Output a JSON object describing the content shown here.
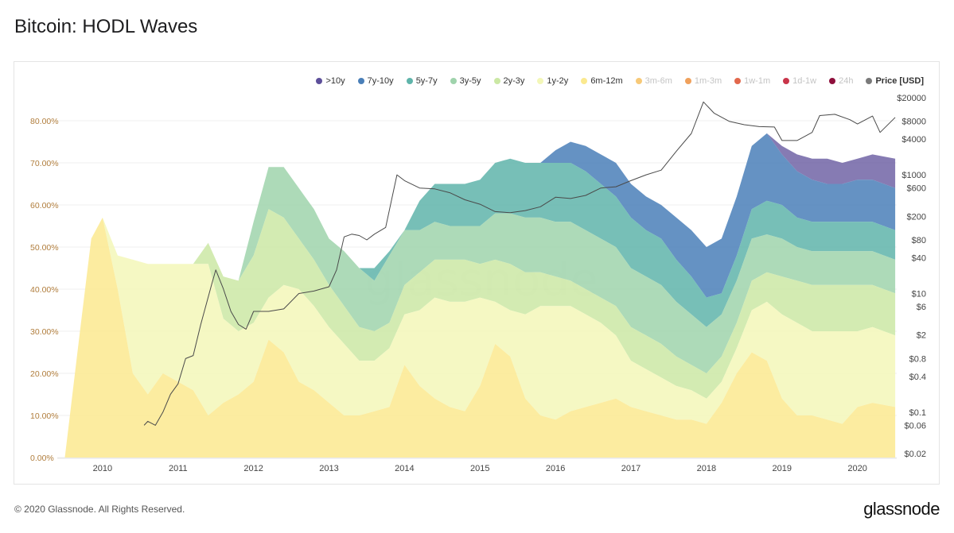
{
  "header": {
    "title": "Bitcoin: HODL Waves"
  },
  "footer": {
    "copyright": "© 2020 Glassnode. All Rights Reserved.",
    "brand": "glassnode"
  },
  "watermark": "glassnode",
  "legend": [
    {
      "label": ">10y",
      "color": "#5d4f9a",
      "active": true
    },
    {
      "label": "7y-10y",
      "color": "#4a7fb8",
      "active": true
    },
    {
      "label": "5y-7y",
      "color": "#5fb4aa",
      "active": true
    },
    {
      "label": "3y-5y",
      "color": "#9fd3ac",
      "active": true
    },
    {
      "label": "2y-3y",
      "color": "#cbe8a4",
      "active": true
    },
    {
      "label": "1y-2y",
      "color": "#f3f7b8",
      "active": true
    },
    {
      "label": "6m-12m",
      "color": "#fbe98f",
      "active": true
    },
    {
      "label": "3m-6m",
      "color": "#f7c978",
      "active": false
    },
    {
      "label": "1m-3m",
      "color": "#f0a15c",
      "active": false
    },
    {
      "label": "1w-1m",
      "color": "#e2684c",
      "active": false
    },
    {
      "label": "1d-1w",
      "color": "#c9354a",
      "active": false
    },
    {
      "label": "24h",
      "color": "#8e0f3c",
      "active": false
    },
    {
      "label": "Price [USD]",
      "color": "#7a7a7a",
      "active": true
    }
  ],
  "chart_data": {
    "type": "area",
    "title": "Bitcoin: HODL Waves",
    "xlabel": "",
    "ylabel": "",
    "x_ticks": [
      "2010",
      "2011",
      "2012",
      "2013",
      "2014",
      "2015",
      "2016",
      "2017",
      "2018",
      "2019",
      "2020"
    ],
    "xlim": [
      2009.4,
      2020.52
    ],
    "y_left": {
      "ticks": [
        "0.00%",
        "10.00%",
        "20.00%",
        "30.00%",
        "40.00%",
        "50.00%",
        "60.00%",
        "70.00%",
        "80.00%"
      ],
      "ylim": [
        0,
        80
      ]
    },
    "y_right": {
      "scale": "log",
      "ticks": [
        "$20000",
        "$8000",
        "$4000",
        "$1000",
        "$600",
        "$200",
        "$80",
        "$40",
        "$10",
        "$6",
        "$2",
        "$0.8",
        "$0.4",
        "$0.1",
        "$0.06",
        "$0.02"
      ],
      "ylim": [
        0.02,
        20000
      ]
    },
    "grid": true,
    "legend_position": "top-right",
    "x": [
      2009.5,
      2009.7,
      2009.85,
      2010.0,
      2010.2,
      2010.4,
      2010.6,
      2010.8,
      2011.0,
      2011.2,
      2011.4,
      2011.6,
      2011.8,
      2012.0,
      2012.2,
      2012.4,
      2012.6,
      2012.8,
      2013.0,
      2013.2,
      2013.4,
      2013.6,
      2013.8,
      2014.0,
      2014.2,
      2014.4,
      2014.6,
      2014.8,
      2015.0,
      2015.2,
      2015.4,
      2015.6,
      2015.8,
      2016.0,
      2016.2,
      2016.4,
      2016.6,
      2016.8,
      2017.0,
      2017.2,
      2017.4,
      2017.6,
      2017.8,
      2018.0,
      2018.2,
      2018.4,
      2018.6,
      2018.8,
      2019.0,
      2019.2,
      2019.4,
      2019.6,
      2019.8,
      2020.0,
      2020.2,
      2020.5
    ],
    "series_cumulative_note": "values are each band's share of supply (percent); bands stack bottom-up from 6m-12m to >10y",
    "series": [
      {
        "name": "6m-12m",
        "values": [
          0,
          30,
          52,
          57,
          40,
          20,
          15,
          20,
          18,
          16,
          10,
          13,
          15,
          18,
          28,
          25,
          18,
          16,
          13,
          10,
          10,
          11,
          12,
          22,
          17,
          14,
          12,
          11,
          17,
          27,
          24,
          14,
          10,
          9,
          11,
          12,
          13,
          14,
          12,
          11,
          10,
          9,
          9,
          8,
          13,
          20,
          25,
          23,
          14,
          10,
          10,
          9,
          8,
          12,
          13,
          12
        ]
      },
      {
        "name": "1y-2y",
        "values": [
          0,
          0,
          0,
          0,
          8,
          27,
          31,
          26,
          28,
          30,
          36,
          20,
          15,
          14,
          10,
          16,
          22,
          20,
          18,
          17,
          13,
          12,
          14,
          12,
          18,
          24,
          25,
          26,
          21,
          10,
          11,
          20,
          26,
          27,
          25,
          22,
          19,
          15,
          11,
          10,
          9,
          8,
          7,
          6,
          5,
          6,
          10,
          14,
          20,
          22,
          20,
          21,
          22,
          18,
          18,
          17
        ]
      },
      {
        "name": "2y-3y",
        "values": [
          0,
          0,
          0,
          0,
          0,
          0,
          0,
          0,
          0,
          0,
          5,
          10,
          12,
          16,
          21,
          16,
          12,
          11,
          10,
          9,
          8,
          7,
          6,
          7,
          9,
          9,
          10,
          10,
          8,
          10,
          11,
          10,
          8,
          7,
          6,
          6,
          6,
          7,
          8,
          8,
          8,
          7,
          6,
          6,
          6,
          6,
          7,
          7,
          9,
          10,
          11,
          11,
          11,
          11,
          10,
          10
        ]
      },
      {
        "name": "3y-5y",
        "values": [
          0,
          0,
          0,
          0,
          0,
          0,
          0,
          0,
          0,
          0,
          0,
          0,
          0,
          8,
          10,
          12,
          12,
          12,
          11,
          13,
          14,
          12,
          16,
          13,
          10,
          9,
          8,
          8,
          9,
          11,
          12,
          13,
          13,
          13,
          14,
          14,
          14,
          14,
          14,
          14,
          14,
          13,
          12,
          11,
          10,
          10,
          10,
          9,
          9,
          8,
          8,
          8,
          8,
          8,
          8,
          8
        ]
      },
      {
        "name": "5y-7y",
        "values": [
          0,
          0,
          0,
          0,
          0,
          0,
          0,
          0,
          0,
          0,
          0,
          0,
          0,
          0,
          0,
          0,
          0,
          0,
          0,
          0,
          0,
          3,
          1,
          0,
          7,
          9,
          10,
          10,
          11,
          12,
          13,
          13,
          13,
          14,
          14,
          14,
          13,
          12,
          12,
          11,
          11,
          10,
          9,
          7,
          5,
          6,
          7,
          8,
          8,
          7,
          7,
          7,
          7,
          7,
          7,
          7
        ]
      },
      {
        "name": "7y-10y",
        "values": [
          0,
          0,
          0,
          0,
          0,
          0,
          0,
          0,
          0,
          0,
          0,
          0,
          0,
          0,
          0,
          0,
          0,
          0,
          0,
          0,
          0,
          0,
          0,
          0,
          0,
          0,
          0,
          0,
          0,
          0,
          0,
          0,
          0,
          3,
          5,
          6,
          7,
          8,
          8,
          8,
          8,
          10,
          11,
          12,
          13,
          14,
          15,
          16,
          12,
          11,
          10,
          9,
          9,
          10,
          10,
          10
        ]
      },
      {
        "name": ">10y",
        "values": [
          0,
          0,
          0,
          0,
          0,
          0,
          0,
          0,
          0,
          0,
          0,
          0,
          0,
          0,
          0,
          0,
          0,
          0,
          0,
          0,
          0,
          0,
          0,
          0,
          0,
          0,
          0,
          0,
          0,
          0,
          0,
          0,
          0,
          0,
          0,
          0,
          0,
          0,
          0,
          0,
          0,
          0,
          0,
          0,
          0,
          0,
          0,
          0,
          2,
          4,
          5,
          6,
          5,
          5,
          6,
          7
        ]
      }
    ],
    "price": {
      "name": "Price [USD]",
      "x": [
        2010.55,
        2010.6,
        2010.7,
        2010.8,
        2010.9,
        2011.0,
        2011.1,
        2011.2,
        2011.3,
        2011.45,
        2011.5,
        2011.6,
        2011.7,
        2011.8,
        2011.9,
        2012.0,
        2012.2,
        2012.4,
        2012.6,
        2012.8,
        2013.0,
        2013.1,
        2013.2,
        2013.3,
        2013.4,
        2013.5,
        2013.6,
        2013.75,
        2013.9,
        2014.0,
        2014.2,
        2014.4,
        2014.6,
        2014.8,
        2015.0,
        2015.2,
        2015.4,
        2015.6,
        2015.8,
        2016.0,
        2016.2,
        2016.4,
        2016.6,
        2016.8,
        2017.0,
        2017.2,
        2017.4,
        2017.6,
        2017.8,
        2017.96,
        2018.1,
        2018.3,
        2018.5,
        2018.7,
        2018.9,
        2019.0,
        2019.2,
        2019.4,
        2019.5,
        2019.7,
        2019.9,
        2020.0,
        2020.2,
        2020.3,
        2020.5
      ],
      "values": [
        0.06,
        0.07,
        0.06,
        0.1,
        0.2,
        0.3,
        0.8,
        0.9,
        3,
        15,
        25,
        12,
        5,
        3,
        2.5,
        5,
        5,
        5.5,
        10,
        11,
        13,
        25,
        90,
        100,
        95,
        80,
        100,
        130,
        1000,
        800,
        600,
        580,
        500,
        380,
        320,
        240,
        230,
        250,
        290,
        420,
        400,
        450,
        600,
        630,
        800,
        1000,
        1200,
        2500,
        5000,
        17000,
        11000,
        8000,
        7000,
        6500,
        6400,
        3800,
        3800,
        5200,
        10000,
        10500,
        8500,
        7200,
        9800,
        5200,
        9300
      ]
    }
  }
}
